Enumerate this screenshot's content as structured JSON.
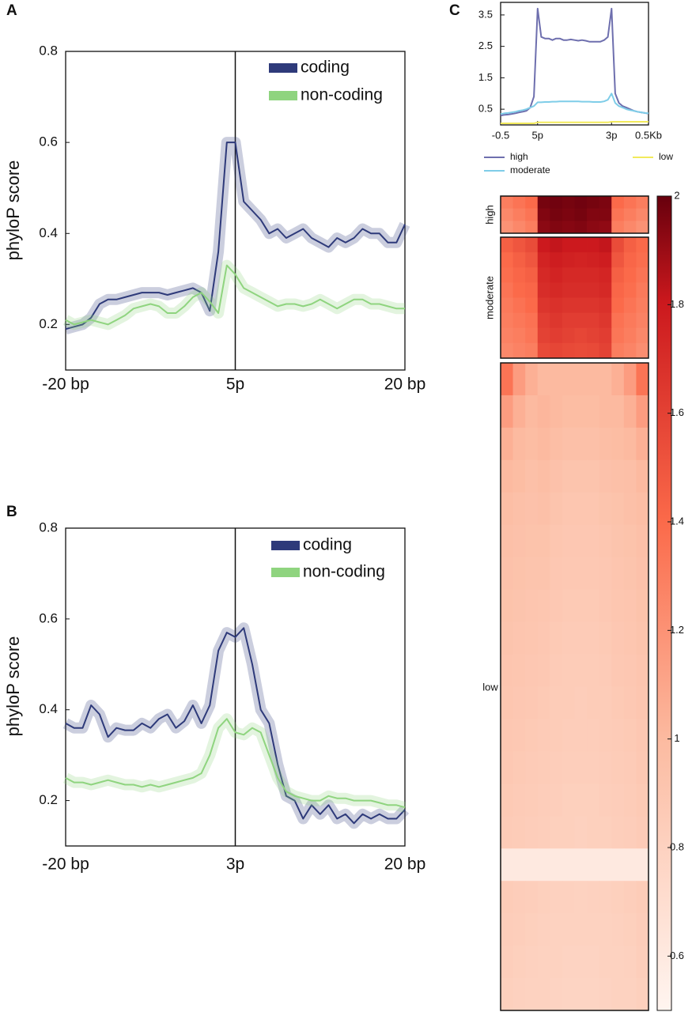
{
  "chart_data": [
    {
      "type": "line",
      "panel": "A",
      "y_label": "phyloP score",
      "x": [
        -20,
        -19,
        -18,
        -17,
        -16,
        -15,
        -14,
        -13,
        -12,
        -11,
        -10,
        -9,
        -8,
        -7,
        -6,
        -5,
        -4,
        -3,
        -2,
        -1,
        0,
        1,
        2,
        3,
        4,
        5,
        6,
        7,
        8,
        9,
        10,
        11,
        12,
        13,
        14,
        15,
        16,
        17,
        18,
        19,
        20
      ],
      "xlim": [
        -20,
        20
      ],
      "xticks": [
        {
          "value": -20,
          "label": "-20 bp"
        },
        {
          "value": 0,
          "label": "5p"
        },
        {
          "value": 20,
          "label": "20 bp"
        }
      ],
      "vline": 0,
      "ylim": [
        0.1,
        0.8
      ],
      "yticks": [
        0.2,
        0.4,
        0.6,
        0.8
      ],
      "series": [
        {
          "name": "coding",
          "color": "#2e3a7a",
          "values": [
            0.19,
            0.195,
            0.2,
            0.215,
            0.245,
            0.255,
            0.255,
            0.26,
            0.265,
            0.27,
            0.27,
            0.27,
            0.265,
            0.27,
            0.275,
            0.28,
            0.27,
            0.23,
            0.36,
            0.6,
            0.6,
            0.47,
            0.45,
            0.43,
            0.4,
            0.41,
            0.39,
            0.4,
            0.41,
            0.39,
            0.38,
            0.37,
            0.39,
            0.38,
            0.39,
            0.41,
            0.4,
            0.4,
            0.38,
            0.38,
            0.42
          ]
        },
        {
          "name": "non-coding",
          "color": "#8fd47f",
          "values": [
            0.21,
            0.2,
            0.205,
            0.21,
            0.205,
            0.2,
            0.21,
            0.22,
            0.235,
            0.24,
            0.245,
            0.24,
            0.225,
            0.225,
            0.24,
            0.26,
            0.27,
            0.25,
            0.225,
            0.33,
            0.31,
            0.28,
            0.27,
            0.26,
            0.25,
            0.24,
            0.245,
            0.245,
            0.24,
            0.245,
            0.255,
            0.245,
            0.235,
            0.245,
            0.255,
            0.255,
            0.245,
            0.245,
            0.24,
            0.235,
            0.235
          ]
        }
      ]
    },
    {
      "type": "line",
      "panel": "B",
      "y_label": "phyloP score",
      "x": [
        -20,
        -19,
        -18,
        -17,
        -16,
        -15,
        -14,
        -13,
        -12,
        -11,
        -10,
        -9,
        -8,
        -7,
        -6,
        -5,
        -4,
        -3,
        -2,
        -1,
        0,
        1,
        2,
        3,
        4,
        5,
        6,
        7,
        8,
        9,
        10,
        11,
        12,
        13,
        14,
        15,
        16,
        17,
        18,
        19,
        20
      ],
      "xlim": [
        -20,
        20
      ],
      "xticks": [
        {
          "value": -20,
          "label": "-20 bp"
        },
        {
          "value": 0,
          "label": "3p"
        },
        {
          "value": 20,
          "label": "20 bp"
        }
      ],
      "vline": 0,
      "ylim": [
        0.1,
        0.8
      ],
      "yticks": [
        0.2,
        0.4,
        0.6,
        0.8
      ],
      "series": [
        {
          "name": "coding",
          "color": "#2e3a7a",
          "values": [
            0.37,
            0.36,
            0.36,
            0.41,
            0.39,
            0.34,
            0.36,
            0.355,
            0.355,
            0.37,
            0.36,
            0.38,
            0.39,
            0.36,
            0.375,
            0.41,
            0.37,
            0.41,
            0.53,
            0.57,
            0.56,
            0.58,
            0.5,
            0.4,
            0.37,
            0.28,
            0.21,
            0.2,
            0.16,
            0.19,
            0.17,
            0.19,
            0.16,
            0.17,
            0.15,
            0.17,
            0.16,
            0.17,
            0.16,
            0.16,
            0.18
          ]
        },
        {
          "name": "non-coding",
          "color": "#8fd47f",
          "values": [
            0.25,
            0.24,
            0.24,
            0.235,
            0.24,
            0.245,
            0.24,
            0.235,
            0.235,
            0.23,
            0.235,
            0.23,
            0.235,
            0.24,
            0.245,
            0.25,
            0.26,
            0.3,
            0.36,
            0.38,
            0.35,
            0.345,
            0.36,
            0.35,
            0.3,
            0.25,
            0.22,
            0.21,
            0.205,
            0.2,
            0.2,
            0.21,
            0.205,
            0.205,
            0.2,
            0.2,
            0.2,
            0.195,
            0.19,
            0.19,
            0.185
          ]
        }
      ]
    },
    {
      "type": "profile",
      "panel": "C",
      "x": [
        0,
        1,
        2,
        3,
        4,
        5,
        6,
        7,
        8,
        9,
        10,
        11,
        12,
        13,
        14,
        15,
        16,
        17,
        18,
        19,
        20,
        21,
        22,
        23,
        24,
        25,
        26,
        27,
        28,
        29,
        30,
        31,
        32,
        33,
        34,
        35,
        36,
        37,
        38,
        39,
        40
      ],
      "xlim": [
        0,
        40
      ],
      "xticks": [
        {
          "value": 0,
          "label": "-0.5"
        },
        {
          "value": 10,
          "label": "5p"
        },
        {
          "value": 30,
          "label": "3p"
        },
        {
          "value": 40,
          "label": "0.5Kb"
        }
      ],
      "ylim": [
        0,
        3.9
      ],
      "yticks": [
        0.5,
        1.5,
        2.5,
        3.5
      ],
      "series": [
        {
          "name": "high",
          "color": "#6e6fae",
          "values": [
            0.3,
            0.32,
            0.33,
            0.35,
            0.37,
            0.4,
            0.42,
            0.45,
            0.55,
            0.9,
            3.7,
            2.8,
            2.75,
            2.75,
            2.7,
            2.75,
            2.75,
            2.7,
            2.7,
            2.72,
            2.7,
            2.68,
            2.7,
            2.68,
            2.65,
            2.65,
            2.65,
            2.65,
            2.7,
            2.8,
            3.7,
            1.0,
            0.7,
            0.6,
            0.55,
            0.5,
            0.45,
            0.42,
            0.4,
            0.38,
            0.36
          ]
        },
        {
          "name": "moderate",
          "color": "#7fcde8",
          "values": [
            0.35,
            0.37,
            0.38,
            0.4,
            0.42,
            0.45,
            0.47,
            0.5,
            0.55,
            0.6,
            0.72,
            0.72,
            0.73,
            0.73,
            0.74,
            0.74,
            0.75,
            0.75,
            0.75,
            0.75,
            0.75,
            0.75,
            0.74,
            0.74,
            0.74,
            0.73,
            0.73,
            0.73,
            0.75,
            0.8,
            1.0,
            0.7,
            0.6,
            0.55,
            0.5,
            0.47,
            0.45,
            0.42,
            0.4,
            0.38,
            0.37
          ]
        },
        {
          "name": "low",
          "color": "#f2ea5c",
          "values": [
            0.05,
            0.05,
            0.05,
            0.05,
            0.05,
            0.05,
            0.05,
            0.05,
            0.05,
            0.05,
            0.08,
            0.08,
            0.08,
            0.08,
            0.08,
            0.08,
            0.08,
            0.08,
            0.08,
            0.08,
            0.08,
            0.08,
            0.08,
            0.08,
            0.08,
            0.08,
            0.08,
            0.08,
            0.08,
            0.08,
            0.1,
            0.1,
            0.1,
            0.1,
            0.1,
            0.1,
            0.1,
            0.1,
            0.1,
            0.1,
            0.1
          ]
        }
      ]
    },
    {
      "type": "heatmap",
      "clim": [
        0.5,
        2.0
      ],
      "cticks": [
        0.6,
        0.8,
        1.0,
        1.2,
        1.4,
        1.6,
        1.8,
        2.0
      ],
      "groups": [
        {
          "name": "high",
          "values": [
            [
              1.3,
              1.35,
              1.4,
              1.97,
              1.98,
              1.97,
              1.98,
              1.97,
              1.96,
              1.4,
              1.35,
              1.3
            ],
            [
              1.25,
              1.3,
              1.35,
              1.95,
              1.97,
              1.96,
              1.97,
              1.95,
              1.95,
              1.35,
              1.3,
              1.25
            ],
            [
              1.2,
              1.25,
              1.3,
              1.93,
              1.95,
              1.94,
              1.95,
              1.93,
              1.92,
              1.3,
              1.25,
              1.2
            ]
          ]
        },
        {
          "name": "moderate",
          "values": [
            [
              1.45,
              1.5,
              1.55,
              1.8,
              1.82,
              1.8,
              1.8,
              1.8,
              1.82,
              1.55,
              1.45,
              1.4
            ],
            [
              1.4,
              1.45,
              1.5,
              1.75,
              1.78,
              1.76,
              1.75,
              1.76,
              1.78,
              1.5,
              1.42,
              1.38
            ],
            [
              1.38,
              1.42,
              1.45,
              1.72,
              1.75,
              1.72,
              1.72,
              1.72,
              1.74,
              1.45,
              1.4,
              1.35
            ],
            [
              1.35,
              1.4,
              1.42,
              1.7,
              1.72,
              1.7,
              1.7,
              1.7,
              1.72,
              1.42,
              1.38,
              1.32
            ],
            [
              1.32,
              1.36,
              1.4,
              1.66,
              1.68,
              1.66,
              1.66,
              1.66,
              1.68,
              1.4,
              1.35,
              1.3
            ],
            [
              1.3,
              1.33,
              1.36,
              1.62,
              1.65,
              1.62,
              1.62,
              1.62,
              1.65,
              1.36,
              1.32,
              1.28
            ],
            [
              1.28,
              1.3,
              1.34,
              1.6,
              1.62,
              1.6,
              1.58,
              1.6,
              1.62,
              1.34,
              1.3,
              1.25
            ],
            [
              1.25,
              1.28,
              1.3,
              1.56,
              1.58,
              1.56,
              1.55,
              1.56,
              1.6,
              1.3,
              1.27,
              1.22
            ]
          ]
        },
        {
          "name": "low",
          "values": [
            [
              1.35,
              1.15,
              1.05,
              1.0,
              1.0,
              1.0,
              1.0,
              1.0,
              1.0,
              1.05,
              1.15,
              1.35
            ],
            [
              1.15,
              1.05,
              1.0,
              1.02,
              1.0,
              0.98,
              0.98,
              0.98,
              1.0,
              1.0,
              1.05,
              1.15
            ],
            [
              1.05,
              1.0,
              0.98,
              1.0,
              0.97,
              0.95,
              0.95,
              0.95,
              0.97,
              0.98,
              1.0,
              1.05
            ],
            [
              1.0,
              0.98,
              0.95,
              0.97,
              0.94,
              0.92,
              0.92,
              0.92,
              0.94,
              0.95,
              0.96,
              1.0
            ],
            [
              0.97,
              0.95,
              0.94,
              0.95,
              0.92,
              0.9,
              0.9,
              0.9,
              0.92,
              0.93,
              0.95,
              0.97
            ],
            [
              0.95,
              0.94,
              0.93,
              0.93,
              0.9,
              0.89,
              0.89,
              0.89,
              0.9,
              0.92,
              0.93,
              0.95
            ],
            [
              0.94,
              0.93,
              0.92,
              0.92,
              0.89,
              0.88,
              0.88,
              0.88,
              0.89,
              0.91,
              0.92,
              0.94
            ],
            [
              0.93,
              0.92,
              0.91,
              0.9,
              0.88,
              0.87,
              0.87,
              0.87,
              0.88,
              0.9,
              0.91,
              0.93
            ],
            [
              0.92,
              0.91,
              0.9,
              0.89,
              0.87,
              0.86,
              0.86,
              0.86,
              0.87,
              0.89,
              0.9,
              0.92
            ],
            [
              0.91,
              0.9,
              0.89,
              0.88,
              0.86,
              0.85,
              0.85,
              0.85,
              0.86,
              0.88,
              0.89,
              0.91
            ],
            [
              0.9,
              0.89,
              0.88,
              0.87,
              0.85,
              0.85,
              0.84,
              0.85,
              0.85,
              0.87,
              0.88,
              0.9
            ],
            [
              0.89,
              0.88,
              0.87,
              0.86,
              0.85,
              0.84,
              0.84,
              0.84,
              0.85,
              0.86,
              0.87,
              0.89
            ],
            [
              0.88,
              0.87,
              0.86,
              0.85,
              0.84,
              0.83,
              0.83,
              0.83,
              0.84,
              0.85,
              0.86,
              0.88
            ],
            [
              0.87,
              0.86,
              0.85,
              0.84,
              0.83,
              0.82,
              0.82,
              0.82,
              0.83,
              0.84,
              0.85,
              0.87
            ],
            [
              0.86,
              0.85,
              0.84,
              0.83,
              0.82,
              0.82,
              0.81,
              0.82,
              0.82,
              0.83,
              0.84,
              0.86
            ],
            [
              0.6,
              0.6,
              0.6,
              0.6,
              0.6,
              0.6,
              0.6,
              0.6,
              0.6,
              0.6,
              0.6,
              0.6
            ],
            [
              0.85,
              0.84,
              0.83,
              0.82,
              0.81,
              0.81,
              0.8,
              0.81,
              0.81,
              0.82,
              0.83,
              0.85
            ],
            [
              0.84,
              0.83,
              0.82,
              0.81,
              0.8,
              0.8,
              0.8,
              0.8,
              0.8,
              0.81,
              0.82,
              0.84
            ],
            [
              0.83,
              0.82,
              0.81,
              0.8,
              0.8,
              0.79,
              0.79,
              0.79,
              0.8,
              0.8,
              0.81,
              0.83
            ],
            [
              0.82,
              0.81,
              0.8,
              0.8,
              0.79,
              0.78,
              0.78,
              0.78,
              0.79,
              0.8,
              0.8,
              0.82
            ]
          ]
        }
      ]
    }
  ]
}
